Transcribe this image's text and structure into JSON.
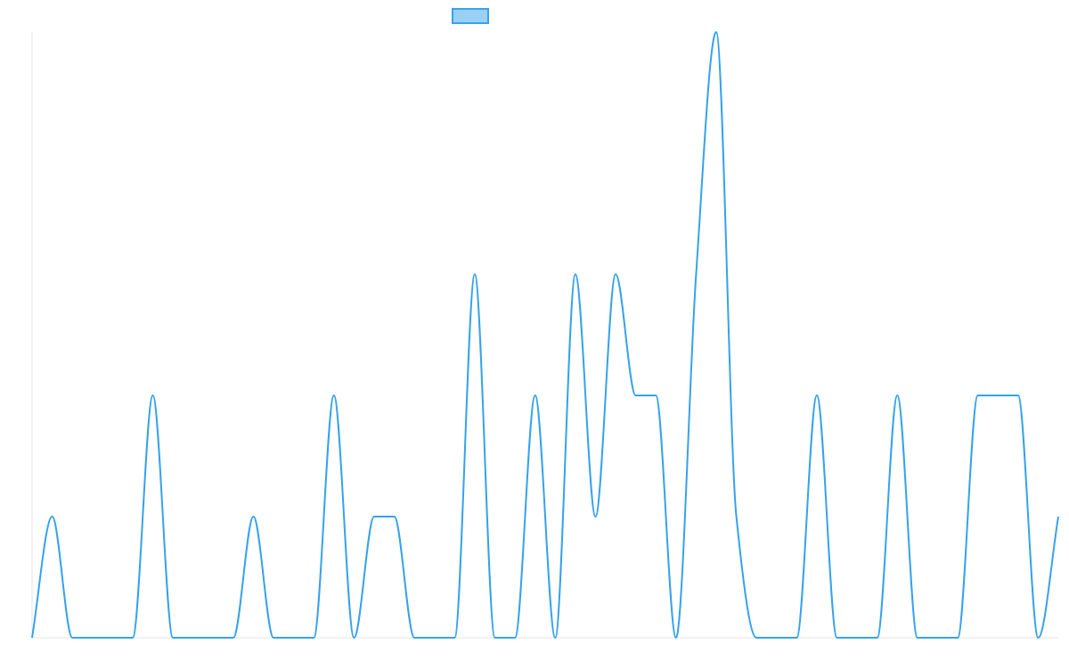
{
  "colors": {
    "series": "#36a2eb",
    "series_fill": "#9ad0f5",
    "axis": "#e6e6e6"
  },
  "chart_data": {
    "type": "line",
    "title": "",
    "xlabel": "",
    "ylabel": "",
    "ylim": [
      0,
      5
    ],
    "grid": false,
    "legend": "top-center",
    "x": [
      0,
      1,
      2,
      3,
      4,
      5,
      6,
      7,
      8,
      9,
      10,
      11,
      12,
      13,
      14,
      15,
      16,
      17,
      18,
      19,
      20,
      21,
      22,
      23,
      24,
      25,
      26,
      27,
      28,
      29,
      30,
      31,
      32,
      33,
      34,
      35,
      36,
      37,
      38,
      39,
      40,
      41,
      42,
      43,
      44,
      45,
      46,
      47,
      48,
      49,
      50,
      51
    ],
    "series": [
      {
        "name": "",
        "values": [
          0,
          1,
          0,
          0,
          0,
          0,
          2,
          0,
          0,
          0,
          0,
          1,
          0,
          0,
          0,
          2,
          0,
          1,
          1,
          0,
          0,
          0,
          3,
          0,
          0,
          2,
          0,
          3,
          1,
          3,
          2,
          2,
          0,
          3,
          5,
          1,
          0,
          0,
          0,
          2,
          0,
          0,
          0,
          2,
          0,
          0,
          0,
          2,
          2,
          2,
          0,
          1
        ]
      }
    ]
  }
}
